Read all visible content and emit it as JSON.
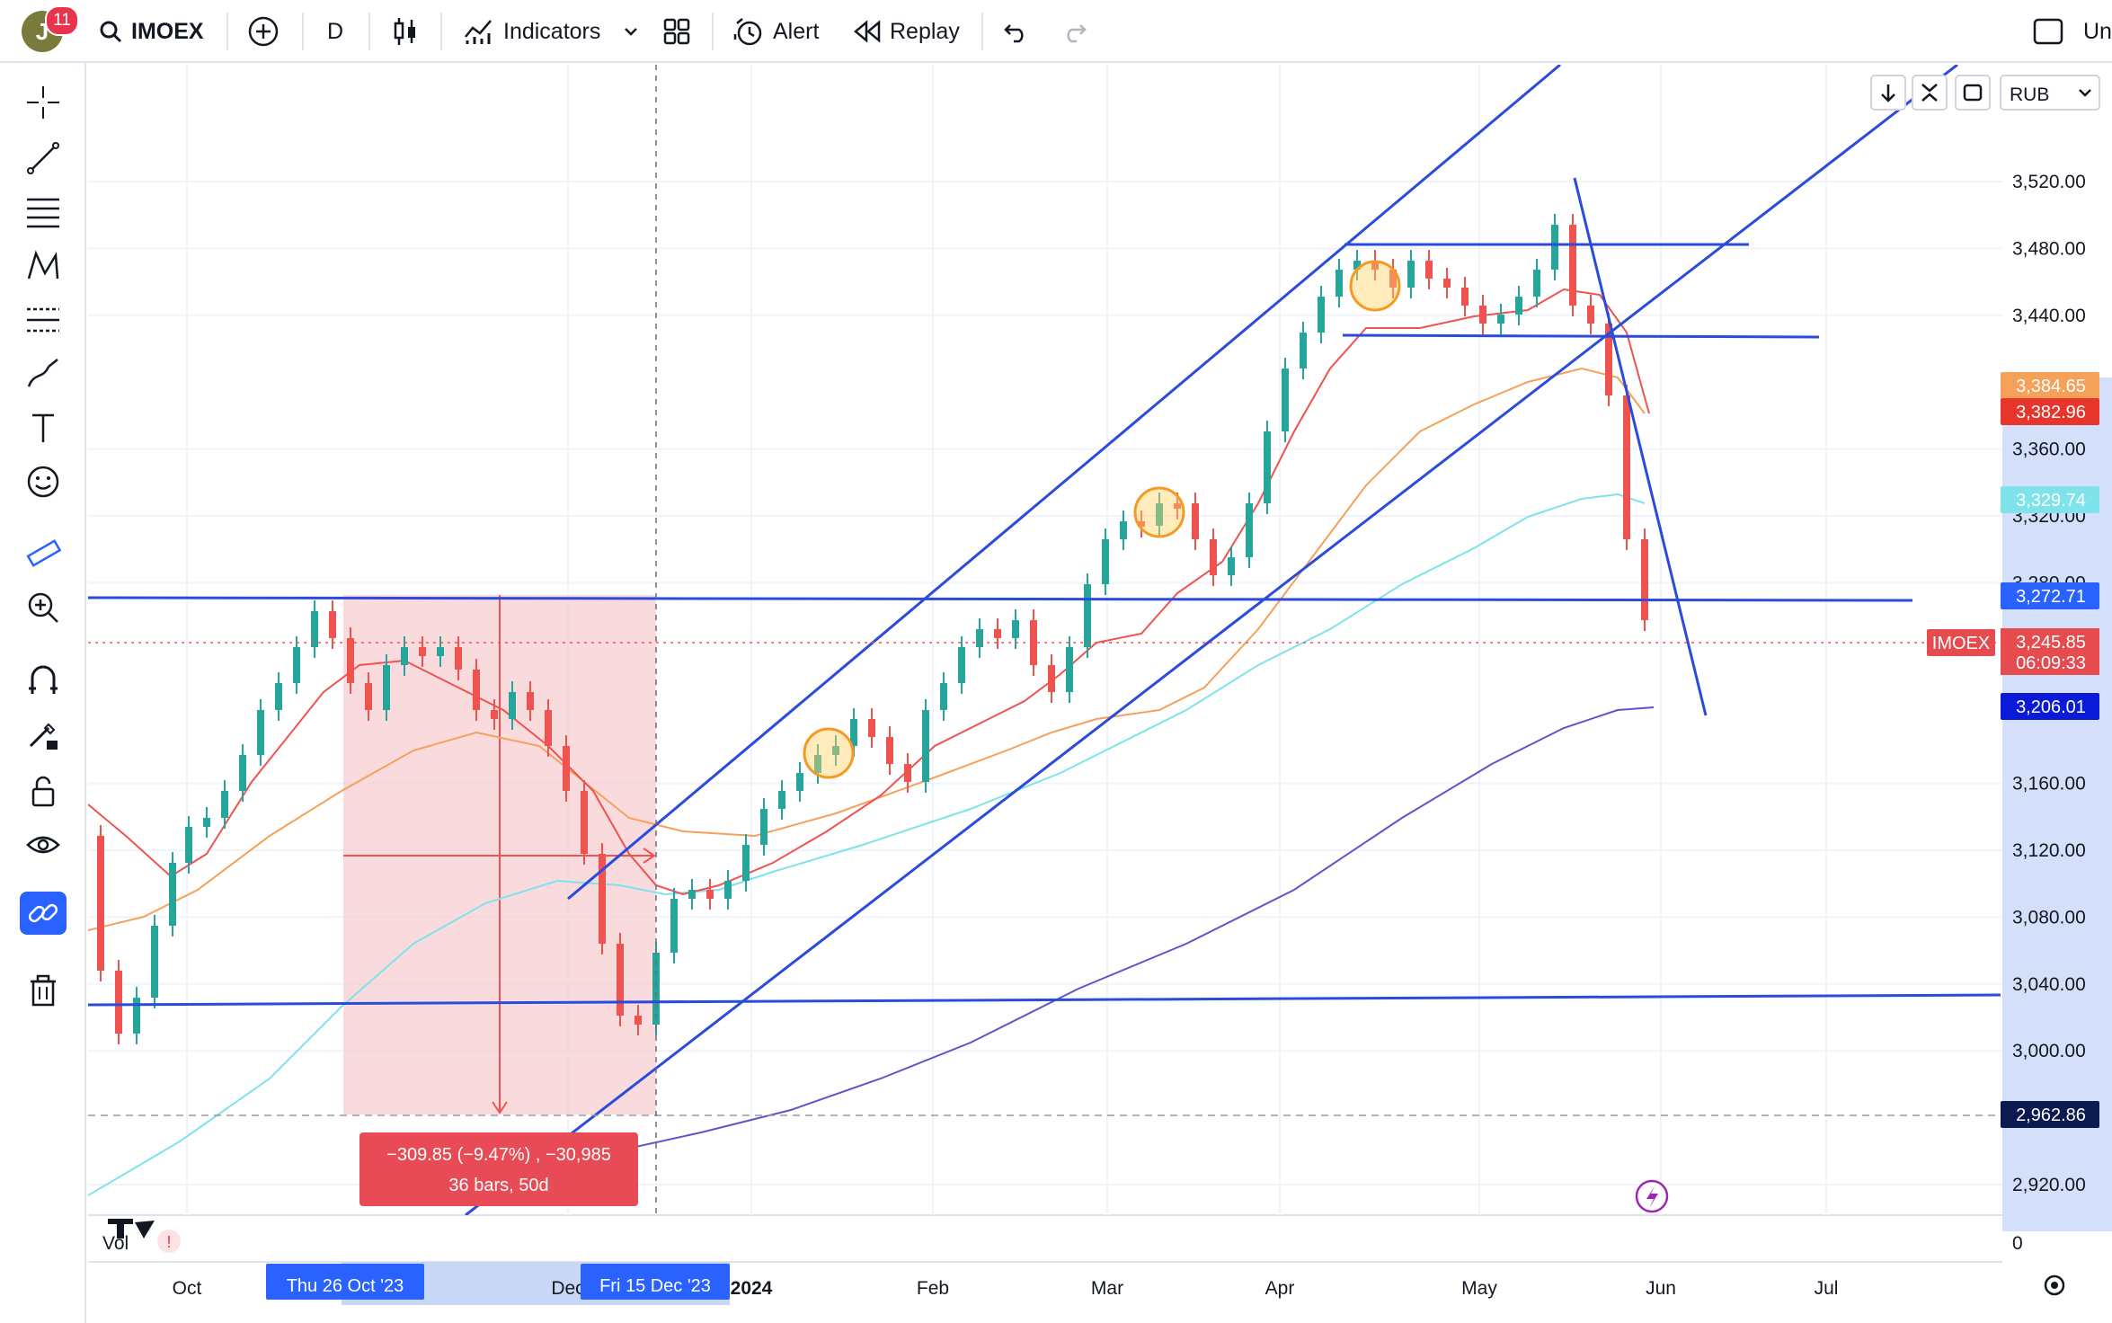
{
  "toolbar": {
    "avatar_letter": "J",
    "notifications": "11",
    "symbol": "IMOEX",
    "interval": "D",
    "indicators_label": "Indicators",
    "alert_label": "Alert",
    "replay_label": "Replay",
    "right_cut_label": "Un"
  },
  "left_tools": [
    {
      "icon": "crosshair-icon"
    },
    {
      "icon": "trendline-icon"
    },
    {
      "icon": "fib-lines-icon"
    },
    {
      "icon": "pattern-icon"
    },
    {
      "icon": "projection-icon"
    },
    {
      "icon": "brush-icon"
    },
    {
      "icon": "text-icon"
    },
    {
      "icon": "emoji-icon"
    },
    {
      "icon": "ruler-icon"
    },
    {
      "icon": "zoom-in-icon"
    },
    {
      "icon": "magnet-icon"
    },
    {
      "icon": "lock-pencil-icon"
    },
    {
      "icon": "lock-icon"
    },
    {
      "icon": "eye-icon"
    },
    {
      "icon": "link-icon"
    },
    {
      "icon": "trash-icon"
    }
  ],
  "chart": {
    "currency": "RUB",
    "price_ticks": [
      "3,520.00",
      "3,480.00",
      "3,440.00",
      "3,360.00",
      "3,320.00",
      "3,280.00",
      "3,160.00",
      "3,120.00",
      "3,080.00",
      "3,040.00",
      "3,000.00",
      "2,920.00"
    ],
    "time_ticks": [
      "Oct",
      "Dec",
      "2024",
      "Feb",
      "Mar",
      "Apr",
      "May",
      "Jun",
      "Jul"
    ],
    "vol_label": "Vol",
    "vol_zero": "0",
    "price_tags": {
      "ema_a": "3,384.65",
      "ema_b": "3,382.96",
      "ema_c": "3,329.74",
      "hline": "3,272.71",
      "symbol_tag": "IMOEX",
      "last_price": "3,245.85",
      "countdown": "06:09:33",
      "ema_d": "3,206.01",
      "range_low": "2,962.86"
    },
    "date_tags": {
      "start": "Thu 26 Oct '23",
      "end": "Fri 15 Dec '23"
    },
    "measure": {
      "line1": "−309.85 (−9.47%) , −30,985",
      "line2": "36 bars, 50d"
    },
    "colors": {
      "up": "#26a69a",
      "down": "#ef5350",
      "trendline": "#2a4bdc",
      "ema_red": "#ef5350",
      "ema_orange": "#f5a15a",
      "ema_cyan": "#7ee3ea",
      "ema_purple": "#5e55c9"
    }
  }
}
